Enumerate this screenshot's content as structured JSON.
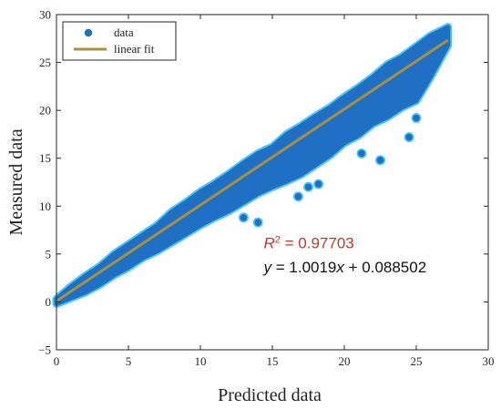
{
  "chart_data": {
    "type": "scatter",
    "title": "",
    "xlabel": "Predicted data",
    "ylabel": "Measured data",
    "xlim": [
      0,
      30
    ],
    "ylim": [
      -5,
      30
    ],
    "xticks": [
      0,
      5,
      10,
      15,
      20,
      25,
      30
    ],
    "yticks": [
      -5,
      0,
      5,
      10,
      15,
      20,
      25,
      30
    ],
    "ytick_labels": [
      "−5",
      "0",
      "5",
      "10",
      "15",
      "20",
      "25",
      "30"
    ],
    "grid": false,
    "legend_position": "top-left",
    "legend": [
      {
        "label": "data",
        "marker": "circle"
      },
      {
        "label": "linear fit",
        "marker": "line"
      }
    ],
    "colors": {
      "data": "#1f6fc4",
      "halo": "#4fc6f0",
      "fit": "#c8852b",
      "fit_inner": "#7ba05b",
      "r2_text": "#c0392b"
    },
    "series": [
      {
        "name": "data",
        "envelope": {
          "x": [
            0,
            1,
            2,
            3,
            4,
            5,
            6,
            7,
            8,
            9,
            10,
            11,
            12,
            13,
            14,
            15,
            16,
            17,
            18,
            19,
            20,
            21,
            22,
            23,
            24,
            25,
            26,
            27.2
          ],
          "upper": [
            0.3,
            1.6,
            2.7,
            3.7,
            5.0,
            6.0,
            7.0,
            8.0,
            9.4,
            10.4,
            11.5,
            12.4,
            13.4,
            14.5,
            15.5,
            16.2,
            17.5,
            18.4,
            19.4,
            20.3,
            21.4,
            22.4,
            23.5,
            24.8,
            25.6,
            26.7,
            27.8,
            28.7
          ],
          "lower": [
            -0.2,
            0.4,
            1.0,
            1.8,
            2.8,
            3.6,
            4.6,
            5.3,
            6.2,
            7.1,
            8.0,
            8.8,
            9.5,
            10.4,
            11.3,
            12.0,
            12.6,
            13.3,
            14.3,
            15.3,
            16.6,
            17.4,
            18.6,
            19.3,
            20.3,
            21.0,
            23.5,
            26.8
          ]
        },
        "outliers": [
          {
            "x": 13.0,
            "y": 8.8
          },
          {
            "x": 14.0,
            "y": 8.3
          },
          {
            "x": 16.8,
            "y": 11.0
          },
          {
            "x": 17.5,
            "y": 12.0
          },
          {
            "x": 18.2,
            "y": 12.3
          },
          {
            "x": 21.2,
            "y": 15.5
          },
          {
            "x": 22.5,
            "y": 14.8
          },
          {
            "x": 24.5,
            "y": 17.2
          },
          {
            "x": 25.0,
            "y": 19.2
          }
        ]
      },
      {
        "name": "linear fit",
        "slope": 1.0019,
        "intercept": 0.088502,
        "x_range": [
          0,
          27.2
        ]
      }
    ],
    "annotations": {
      "r2_label": "R",
      "r2_sup": "2",
      "r2_value": " = 0.97703",
      "r2_x": 14.4,
      "r2_y": 5.6,
      "eq_y": "y",
      "eq_mid": " = 1.0019",
      "eq_x": "x",
      "eq_rest": " + 0.088502",
      "eq_x_pos": 14.4,
      "eq_y_pos": 3.1
    }
  }
}
